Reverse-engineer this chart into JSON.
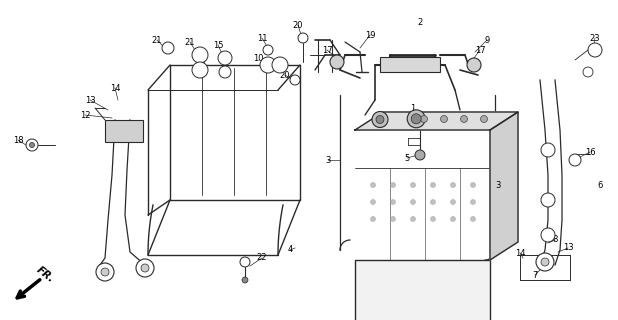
{
  "bg_color": "#ffffff",
  "line_color": "#2a2a2a",
  "label_color": "#000000",
  "figsize": [
    6.18,
    3.2
  ],
  "dpi": 100
}
